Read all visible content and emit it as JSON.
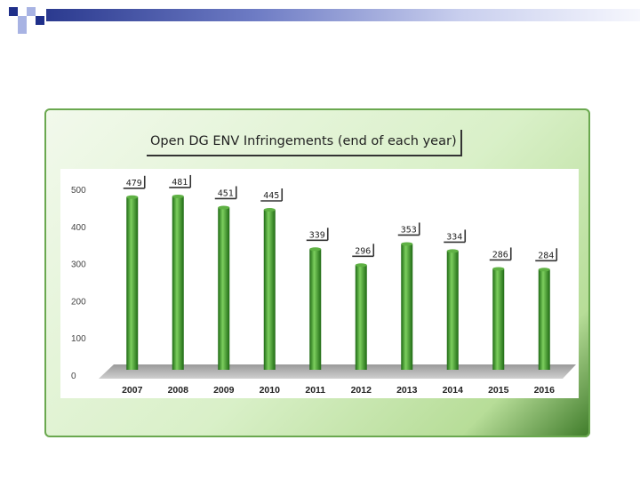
{
  "colors": {
    "bar_light": "#7ccf5e",
    "bar_dark": "#1f6a14",
    "floor": "#a8a8a8",
    "frame_accent": "#3d7a28",
    "deco_dark": "#1f2f8a",
    "deco_light": "#a8b3e3"
  },
  "chart_data": {
    "type": "bar",
    "title": "Open DG ENV Infringements (end of each year)",
    "xlabel": "",
    "ylabel": "",
    "categories": [
      "2007",
      "2008",
      "2009",
      "2010",
      "2011",
      "2012",
      "2013",
      "2014",
      "2015",
      "2016"
    ],
    "values": [
      479,
      481,
      451,
      445,
      339,
      296,
      353,
      334,
      286,
      284
    ],
    "ylim": [
      0,
      500
    ],
    "yticks": [
      "0",
      "100",
      "200",
      "300",
      "400",
      "500"
    ],
    "grid": false,
    "legend": "none"
  }
}
